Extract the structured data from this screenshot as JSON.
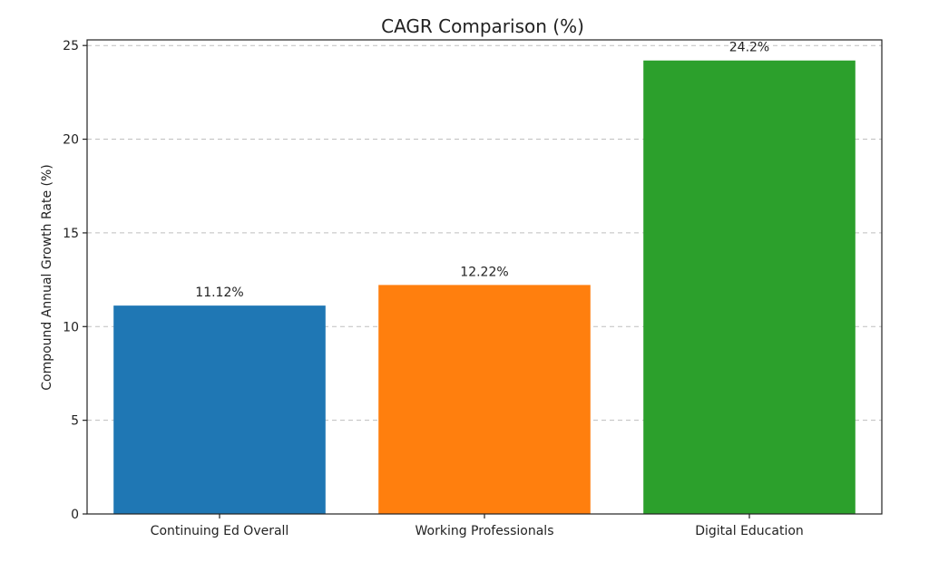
{
  "chart_data": {
    "type": "bar",
    "title": "CAGR Comparison (%)",
    "xlabel": "",
    "ylabel": "Compound Annual Growth Rate (%)",
    "categories": [
      "Continuing Ed Overall",
      "Working Professionals",
      "Digital Education"
    ],
    "values": [
      11.12,
      12.22,
      24.2
    ],
    "value_labels": [
      "11.12%",
      "12.22%",
      "24.2%"
    ],
    "colors": [
      "#1f77b4",
      "#ff7f0e",
      "#2ca02c"
    ],
    "ylim": [
      0,
      25.3
    ],
    "yticks": [
      0,
      5,
      10,
      15,
      20,
      25
    ],
    "grid": "y-dashed",
    "legend": "none"
  }
}
